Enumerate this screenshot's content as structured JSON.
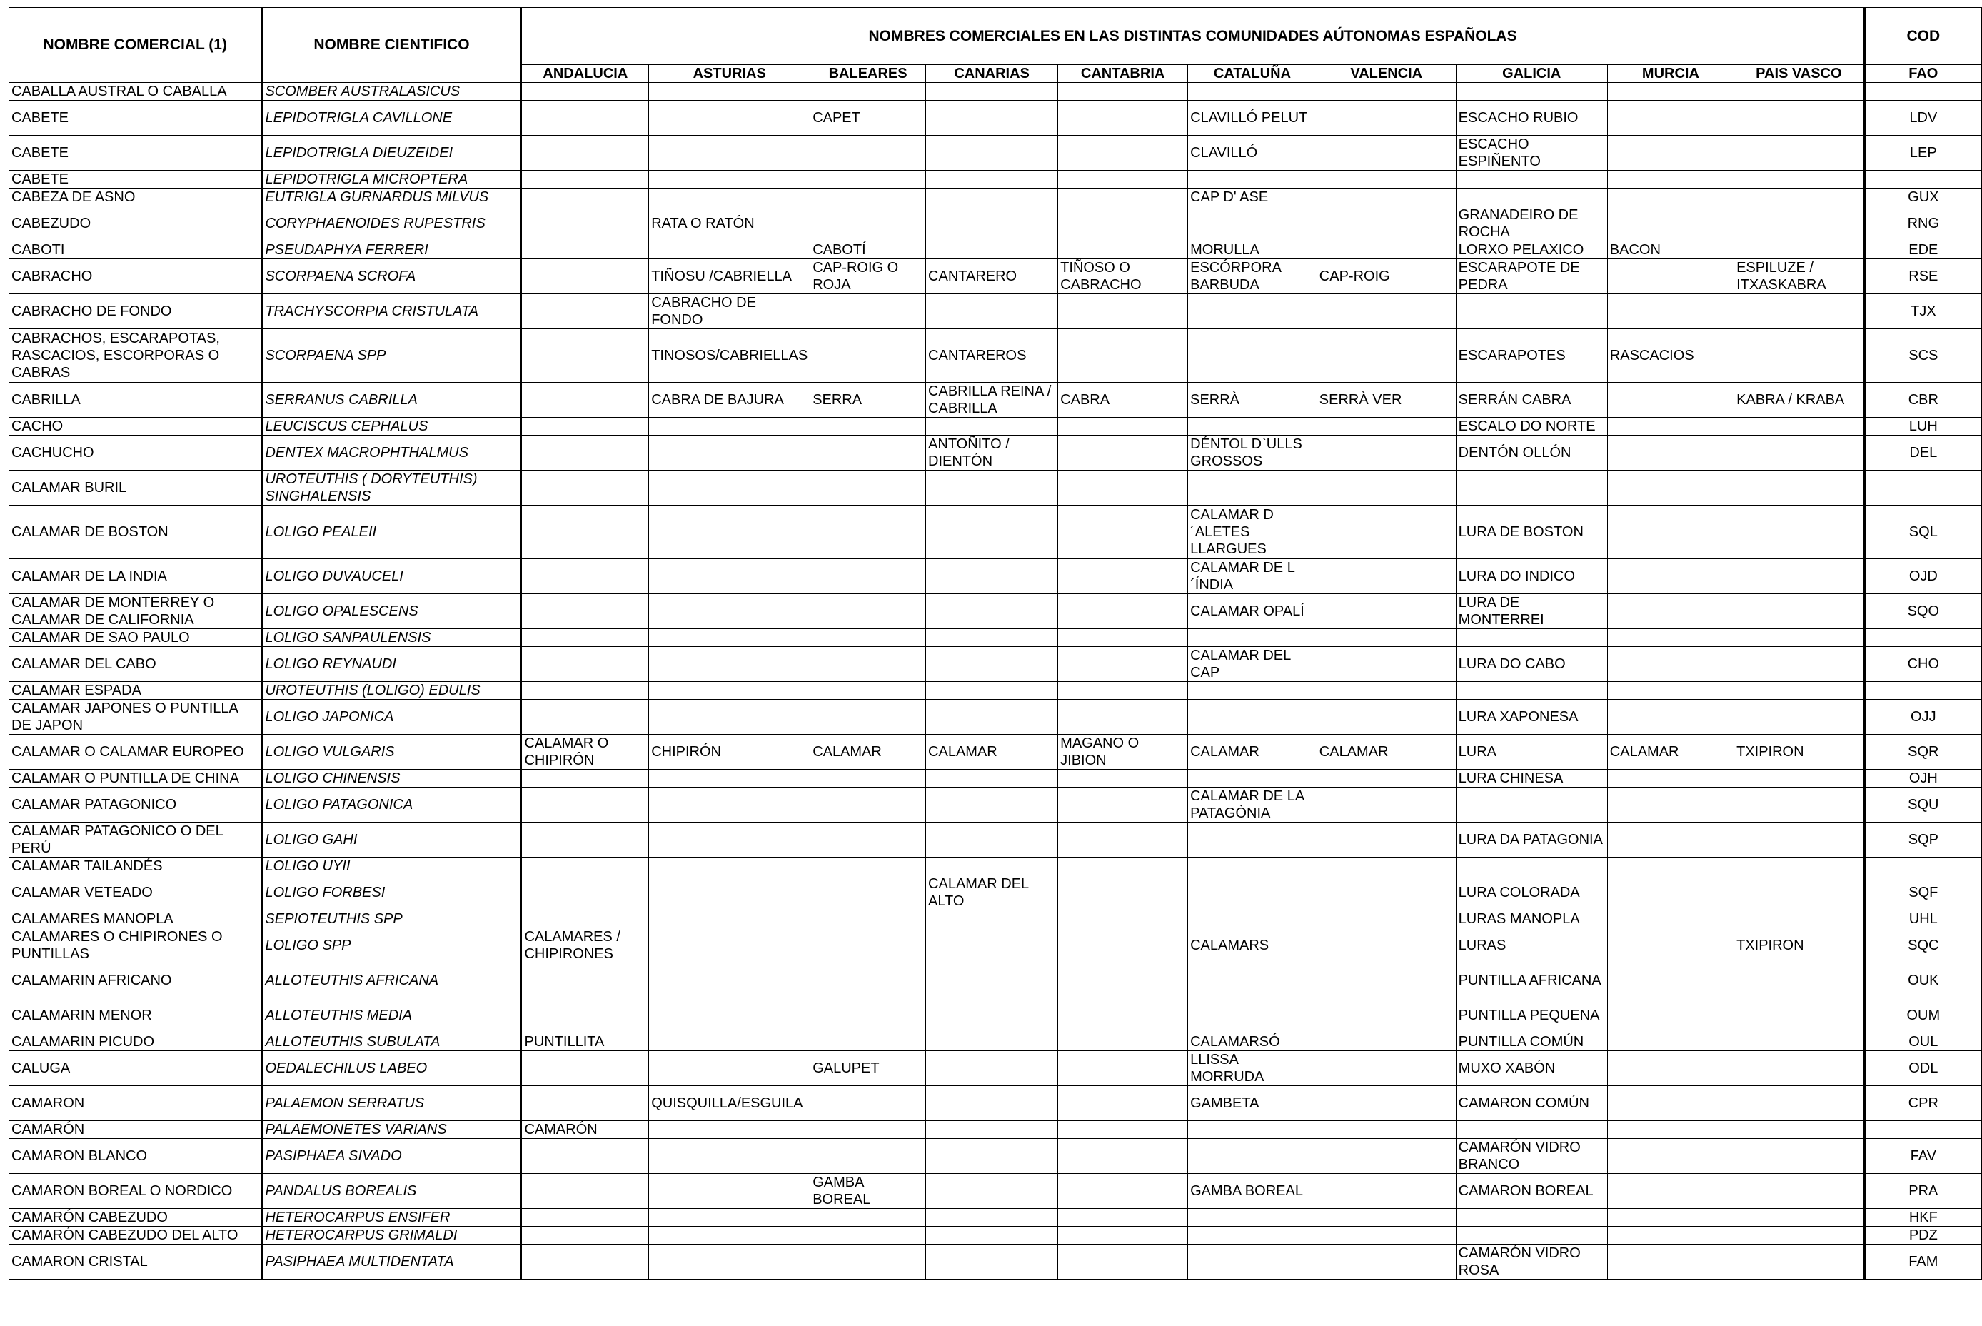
{
  "header": {
    "col_commercial": "NOMBRE COMERCIAL (1)",
    "col_scientific": "NOMBRE CIENTIFICO",
    "col_regions_group": "NOMBRES COMERCIALES EN LAS DISTINTAS COMUNIDADES AÚTONOMAS ESPAÑOLAS",
    "col_cod": "COD",
    "col_fao": "FAO",
    "regions": [
      "ANDALUCIA",
      "ASTURIAS",
      "BALEARES",
      "CANARIAS",
      "CANTABRIA",
      "CATALUÑA",
      "VALENCIA",
      "GALICIA",
      "MURCIA",
      "PAIS VASCO"
    ]
  },
  "rows": [
    {
      "c": "CABALLA AUSTRAL O CABALLA",
      "s": "SCOMBER AUSTRALASICUS",
      "r": [
        "",
        "",
        "",
        "",
        "",
        "",
        "",
        "",
        "",
        ""
      ],
      "f": ""
    },
    {
      "c": "CABETE",
      "s": "LEPIDOTRIGLA CAVILLONE",
      "r": [
        "",
        "",
        "CAPET",
        "",
        "",
        "CLAVILLÓ PELUT",
        "",
        "ESCACHO RUBIO",
        "",
        ""
      ],
      "f": "LDV"
    },
    {
      "c": "CABETE",
      "s": "LEPIDOTRIGLA DIEUZEIDEI",
      "r": [
        "",
        "",
        "",
        "",
        "",
        "CLAVILLÓ",
        "",
        "ESCACHO ESPIÑENTO",
        "",
        ""
      ],
      "f": "LEP"
    },
    {
      "c": "CABETE",
      "s": "LEPIDOTRIGLA MICROPTERA",
      "r": [
        "",
        "",
        "",
        "",
        "",
        "",
        "",
        "",
        "",
        ""
      ],
      "f": ""
    },
    {
      "c": "CABEZA DE ASNO",
      "s": "EUTRIGLA GURNARDUS MILVUS",
      "r": [
        "",
        "",
        "",
        "",
        "",
        "CAP D' ASE",
        "",
        "",
        "",
        ""
      ],
      "f": "GUX"
    },
    {
      "c": "CABEZUDO",
      "s": "CORYPHAENOIDES RUPESTRIS",
      "r": [
        "",
        "RATA O RATÓN",
        "",
        "",
        "",
        "",
        "",
        "GRANADEIRO DE ROCHA",
        "",
        ""
      ],
      "f": "RNG"
    },
    {
      "c": "CABOTI",
      "s": "PSEUDAPHYA FERRERI",
      "r": [
        "",
        "",
        "CABOTÍ",
        "",
        "",
        "MORULLA",
        "",
        "LORXO PELAXICO",
        "BACON",
        ""
      ],
      "f": "EDE"
    },
    {
      "c": "CABRACHO",
      "s": "SCORPAENA SCROFA",
      "r": [
        "",
        "TIÑOSU /CABRIELLA",
        "CAP-ROIG O ROJA",
        "CANTARERO",
        "TIÑOSO O CABRACHO",
        "ESCÓRPORA BARBUDA",
        "CAP-ROIG",
        "ESCARAPOTE DE PEDRA",
        "",
        "ESPILUZE / ITXASKABRA"
      ],
      "f": "RSE"
    },
    {
      "c": "CABRACHO DE FONDO",
      "s": "TRACHYSCORPIA CRISTULATA",
      "r": [
        "",
        "CABRACHO DE FONDO",
        "",
        "",
        "",
        "",
        "",
        "",
        "",
        ""
      ],
      "f": "TJX"
    },
    {
      "c": "CABRACHOS, ESCARAPOTAS, RASCACIOS, ESCORPORAS  O CABRAS",
      "s": "SCORPAENA SPP",
      "r": [
        "",
        "TINOSOS/CABRIELLAS",
        "",
        "CANTAREROS",
        "",
        "",
        "",
        "ESCARAPOTES",
        "RASCACIOS",
        ""
      ],
      "f": "SCS"
    },
    {
      "c": "CABRILLA",
      "s": "SERRANUS CABRILLA",
      "r": [
        "",
        "CABRA DE BAJURA",
        "SERRA",
        "CABRILLA REINA / CABRILLA",
        "CABRA",
        "SERRÀ",
        "SERRÀ VER",
        "SERRÁN CABRA",
        "",
        "KABRA / KRABA"
      ],
      "f": "CBR"
    },
    {
      "c": "CACHO",
      "s": "LEUCISCUS CEPHALUS",
      "r": [
        "",
        "",
        "",
        "",
        "",
        "",
        "",
        "ESCALO DO NORTE",
        "",
        ""
      ],
      "f": "LUH"
    },
    {
      "c": "CACHUCHO",
      "s": "DENTEX MACROPHTHALMUS",
      "r": [
        "",
        "",
        "",
        "ANTOÑITO / DIENTÓN",
        "",
        "DÉNTOL D`ULLS GROSSOS",
        "",
        "DENTÓN OLLÓN",
        "",
        ""
      ],
      "f": "DEL"
    },
    {
      "c": "CALAMAR BURIL",
      "s": "UROTEUTHIS ( DORYTEUTHIS) SINGHALENSIS",
      "r": [
        "",
        "",
        "",
        "",
        "",
        "",
        "",
        "",
        "",
        ""
      ],
      "f": ""
    },
    {
      "c": "CALAMAR DE BOSTON",
      "s": "LOLIGO PEALEII",
      "r": [
        "",
        "",
        "",
        "",
        "",
        "CALAMAR D´ALETES LLARGUES",
        "",
        "LURA DE BOSTON",
        "",
        ""
      ],
      "f": "SQL"
    },
    {
      "c": "CALAMAR DE LA INDIA",
      "s": "LOLIGO DUVAUCELI",
      "r": [
        "",
        "",
        "",
        "",
        "",
        "CALAMAR DE L´ÍNDIA",
        "",
        "LURA DO INDICO",
        "",
        ""
      ],
      "f": "OJD"
    },
    {
      "c": "CALAMAR DE MONTERREY O CALAMAR DE CALIFORNIA",
      "s": "LOLIGO OPALESCENS",
      "r": [
        "",
        "",
        "",
        "",
        "",
        "CALAMAR OPALÍ",
        "",
        "LURA DE MONTERREI",
        "",
        ""
      ],
      "f": "SQO"
    },
    {
      "c": "CALAMAR DE SAO PAULO",
      "s": "LOLIGO SANPAULENSIS",
      "r": [
        "",
        "",
        "",
        "",
        "",
        "",
        "",
        "",
        "",
        ""
      ],
      "f": ""
    },
    {
      "c": "CALAMAR DEL CABO",
      "s": "LOLIGO REYNAUDI",
      "r": [
        "",
        "",
        "",
        "",
        "",
        "CALAMAR DEL CAP",
        "",
        "LURA DO CABO",
        "",
        ""
      ],
      "f": "CHO"
    },
    {
      "c": "CALAMAR ESPADA",
      "s": "UROTEUTHIS (LOLIGO) EDULIS",
      "r": [
        "",
        "",
        "",
        "",
        "",
        "",
        "",
        "",
        "",
        ""
      ],
      "f": ""
    },
    {
      "c": "CALAMAR JAPONES O PUNTILLA DE JAPON",
      "s": "LOLIGO JAPONICA",
      "r": [
        "",
        "",
        "",
        "",
        "",
        "",
        "",
        "LURA XAPONESA",
        "",
        ""
      ],
      "f": "OJJ"
    },
    {
      "c": "CALAMAR O CALAMAR EUROPEO",
      "s": "LOLIGO VULGARIS",
      "r": [
        "CALAMAR O CHIPIRÓN",
        "CHIPIRÓN",
        "CALAMAR",
        "CALAMAR",
        "MAGANO O JIBION",
        "CALAMAR",
        "CALAMAR",
        "LURA",
        "CALAMAR",
        "TXIPIRON"
      ],
      "f": "SQR"
    },
    {
      "c": "CALAMAR O PUNTILLA DE CHINA",
      "s": "LOLIGO CHINENSIS",
      "r": [
        "",
        "",
        "",
        "",
        "",
        "",
        "",
        "LURA CHINESA",
        "",
        ""
      ],
      "f": "OJH"
    },
    {
      "c": "CALAMAR PATAGONICO",
      "s": "LOLIGO PATAGONICA",
      "r": [
        "",
        "",
        "",
        "",
        "",
        "CALAMAR DE LA PATAGÒNIA",
        "",
        "",
        "",
        ""
      ],
      "f": "SQU"
    },
    {
      "c": "CALAMAR PATAGONICO O DEL PERÚ",
      "s": "LOLIGO GAHI",
      "r": [
        "",
        "",
        "",
        "",
        "",
        "",
        "",
        "LURA DA PATAGONIA",
        "",
        ""
      ],
      "f": "SQP"
    },
    {
      "c": "CALAMAR TAILANDÉS",
      "s": "LOLIGO UYII",
      "r": [
        "",
        "",
        "",
        "",
        "",
        "",
        "",
        "",
        "",
        ""
      ],
      "f": ""
    },
    {
      "c": "CALAMAR VETEADO",
      "s": "LOLIGO FORBESI",
      "r": [
        "",
        "",
        "",
        "CALAMAR DEL ALTO",
        "",
        "",
        "",
        "LURA COLORADA",
        "",
        ""
      ],
      "f": "SQF"
    },
    {
      "c": "CALAMARES  MANOPLA",
      "s": "SEPIOTEUTHIS SPP",
      "r": [
        "",
        "",
        "",
        "",
        "",
        "",
        "",
        "LURAS MANOPLA",
        "",
        ""
      ],
      "f": "UHL"
    },
    {
      "c": "CALAMARES O CHIPIRONES O PUNTILLAS",
      "s": "LOLIGO SPP",
      "r": [
        "CALAMARES / CHIPIRONES",
        "",
        "",
        "",
        "",
        "CALAMARS",
        "",
        "LURAS",
        "",
        "TXIPIRON"
      ],
      "f": "SQC"
    },
    {
      "c": "CALAMARIN AFRICANO",
      "s": "ALLOTEUTHIS AFRICANA",
      "r": [
        "",
        "",
        "",
        "",
        "",
        "",
        "",
        "PUNTILLA AFRICANA",
        "",
        ""
      ],
      "f": "OUK"
    },
    {
      "c": "CALAMARIN MENOR",
      "s": "ALLOTEUTHIS MEDIA",
      "r": [
        "",
        "",
        "",
        "",
        "",
        "",
        "",
        "PUNTILLA PEQUENA",
        "",
        ""
      ],
      "f": "OUM"
    },
    {
      "c": "CALAMARIN PICUDO",
      "s": "ALLOTEUTHIS SUBULATA",
      "r": [
        "PUNTILLITA",
        "",
        "",
        "",
        "",
        "CALAMARSÓ",
        "",
        "PUNTILLA COMÚN",
        "",
        ""
      ],
      "f": "OUL"
    },
    {
      "c": "CALUGA",
      "s": "OEDALECHILUS LABEO",
      "r": [
        "",
        "",
        "GALUPET",
        "",
        "",
        "LLISSA MORRUDA",
        "",
        "MUXO XABÓN",
        "",
        ""
      ],
      "f": "ODL"
    },
    {
      "c": "CAMARON",
      "s": "PALAEMON SERRATUS",
      "r": [
        "",
        "QUISQUILLA/ESGUILA",
        "",
        "",
        "",
        "GAMBETA",
        "",
        "CAMARON COMÚN",
        "",
        ""
      ],
      "f": "CPR"
    },
    {
      "c": "CAMARÓN",
      "s": "PALAEMONETES VARIANS",
      "r": [
        "CAMARÓN",
        "",
        "",
        "",
        "",
        "",
        "",
        "",
        "",
        ""
      ],
      "f": ""
    },
    {
      "c": "CAMARON BLANCO",
      "s": "PASIPHAEA SIVADO",
      "r": [
        "",
        "",
        "",
        "",
        "",
        "",
        "",
        "CAMARÓN VIDRO BRANCO",
        "",
        ""
      ],
      "f": "FAV"
    },
    {
      "c": "CAMARON BOREAL O NORDICO",
      "s": "PANDALUS BOREALIS",
      "r": [
        "",
        "",
        "GAMBA BOREAL",
        "",
        "",
        "GAMBA BOREAL",
        "",
        "CAMARON BOREAL",
        "",
        ""
      ],
      "f": "PRA"
    },
    {
      "c": "CAMARÓN CABEZUDO",
      "s": "HETEROCARPUS ENSIFER",
      "r": [
        "",
        "",
        "",
        "",
        "",
        "",
        "",
        "",
        "",
        ""
      ],
      "f": "HKF"
    },
    {
      "c": "CAMARÓN CABEZUDO DEL ALTO",
      "s": "HETEROCARPUS GRIMALDI",
      "r": [
        "",
        "",
        "",
        "",
        "",
        "",
        "",
        "",
        "",
        ""
      ],
      "f": "PDZ"
    },
    {
      "c": "CAMARON CRISTAL",
      "s": "PASIPHAEA MULTIDENTATA",
      "r": [
        "",
        "",
        "",
        "",
        "",
        "",
        "",
        "CAMARÓN VIDRO ROSA",
        "",
        ""
      ],
      "f": "FAM"
    }
  ]
}
